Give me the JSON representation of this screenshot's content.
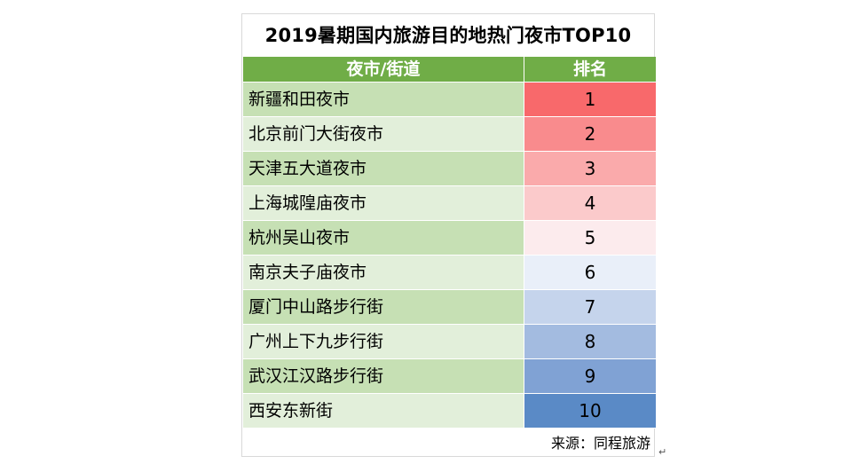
{
  "table": {
    "title": "2019暑期国内旅游目的地热门夜市TOP10",
    "headers": {
      "name": "夜市/街道",
      "rank": "排名"
    },
    "rows": [
      {
        "name": "新疆和田夜市",
        "rank": "1",
        "name_bg": "#c6e0b4",
        "rank_bg": "#f8696b"
      },
      {
        "name": "北京前门大街夜市",
        "rank": "2",
        "name_bg": "#e2efda",
        "rank_bg": "#f98b8d"
      },
      {
        "name": "天津五大道夜市",
        "rank": "3",
        "name_bg": "#c6e0b4",
        "rank_bg": "#faaaab"
      },
      {
        "name": "上海城隍庙夜市",
        "rank": "4",
        "name_bg": "#e2efda",
        "rank_bg": "#fbcacb"
      },
      {
        "name": "杭州吴山夜市",
        "rank": "5",
        "name_bg": "#c6e0b4",
        "rank_bg": "#fcebed"
      },
      {
        "name": "南京夫子庙夜市",
        "rank": "6",
        "name_bg": "#e2efda",
        "rank_bg": "#e9eff9"
      },
      {
        "name": "厦门中山路步行街",
        "rank": "7",
        "name_bg": "#c6e0b4",
        "rank_bg": "#c5d4ec"
      },
      {
        "name": "广州上下九步行街",
        "rank": "8",
        "name_bg": "#e2efda",
        "rank_bg": "#a3bbe0"
      },
      {
        "name": "武汉江汉路步行街",
        "rank": "9",
        "name_bg": "#c6e0b4",
        "rank_bg": "#80a2d4"
      },
      {
        "name": "西安东新街",
        "rank": "10",
        "name_bg": "#e2efda",
        "rank_bg": "#5a8ac6"
      }
    ],
    "source": "来源：同程旅游"
  },
  "paragraph_mark": "↵"
}
